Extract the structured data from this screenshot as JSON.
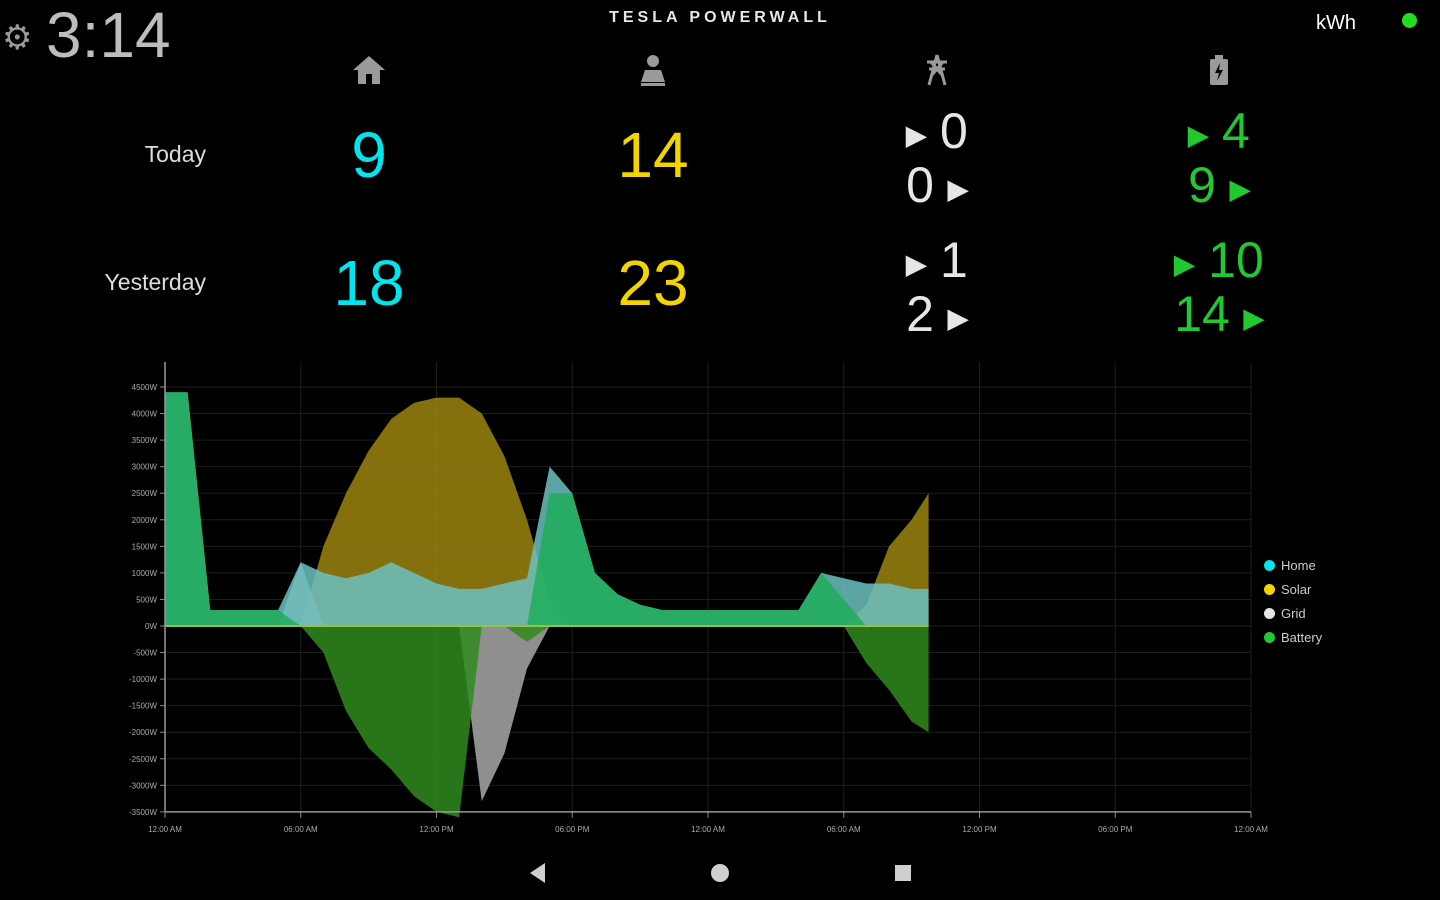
{
  "header": {
    "time": "3:14",
    "brand": "TESLA  POWERWALL",
    "unit": "kWh",
    "status_color": "#22dd22"
  },
  "colors": {
    "home": "#00e5ee",
    "solar": "#f2d400",
    "grid": "#e6e6e6",
    "battery": "#22c832"
  },
  "columns": [
    {
      "icon": "house-icon"
    },
    {
      "icon": "solar-panel-icon"
    },
    {
      "icon": "grid-tower-icon"
    },
    {
      "icon": "battery-icon"
    }
  ],
  "rows": [
    {
      "label": "Today",
      "home": "9",
      "solar": "14",
      "grid_in": "0",
      "grid_out": "0",
      "battery_in": "4",
      "battery_out": "9"
    },
    {
      "label": "Yesterday",
      "home": "18",
      "solar": "23",
      "grid_in": "1",
      "grid_out": "2",
      "battery_in": "10",
      "battery_out": "14"
    }
  ],
  "chart_data": {
    "type": "area",
    "yunit": "W",
    "ylim": [
      -3500,
      4500
    ],
    "yticks": [
      "4500W",
      "4000W",
      "3500W",
      "3000W",
      "2500W",
      "2000W",
      "1500W",
      "1000W",
      "500W",
      "0W",
      "-500W",
      "-1000W",
      "-1500W",
      "-2000W",
      "-2500W",
      "-3000W",
      "-3500W"
    ],
    "xticks": [
      "12:00 AM",
      "06:00 AM",
      "12:00 PM",
      "06:00 PM",
      "12:00 AM",
      "06:00 AM",
      "12:00 PM",
      "06:00 PM",
      "12:00 AM"
    ],
    "grid": true,
    "legend_position": "right",
    "x": [
      "D1 00:00",
      "D1 01:00",
      "D1 02:00",
      "D1 03:00",
      "D1 04:00",
      "D1 05:00",
      "D1 06:00",
      "D1 07:00",
      "D1 08:00",
      "D1 09:00",
      "D1 10:00",
      "D1 11:00",
      "D1 12:00",
      "D1 13:00",
      "D1 14:00",
      "D1 15:00",
      "D1 16:00",
      "D1 17:00",
      "D1 18:00",
      "D1 19:00",
      "D1 20:00",
      "D1 21:00",
      "D1 22:00",
      "D1 23:00",
      "D2 00:00",
      "D2 01:00",
      "D2 02:00",
      "D2 03:00",
      "D2 04:00",
      "D2 05:00",
      "D2 06:00",
      "D2 07:00",
      "D2 08:00",
      "D2 09:00",
      "D2 09:45"
    ],
    "series": [
      {
        "name": "Solar",
        "color": "#9c8410",
        "values": [
          0,
          0,
          0,
          0,
          0,
          0,
          0,
          1500,
          2500,
          3300,
          3900,
          4200,
          4300,
          4300,
          4000,
          3200,
          2000,
          500,
          0,
          0,
          0,
          0,
          0,
          0,
          0,
          0,
          0,
          0,
          0,
          0,
          0,
          400,
          1500,
          2000,
          2500
        ]
      },
      {
        "name": "Grid",
        "color": "#a8a8a8",
        "values": [
          0,
          0,
          0,
          0,
          0,
          0,
          1200,
          0,
          0,
          0,
          0,
          0,
          0,
          0,
          -3300,
          -2400,
          -800,
          0,
          0,
          0,
          0,
          0,
          0,
          0,
          0,
          0,
          0,
          0,
          0,
          0,
          0,
          0,
          0,
          0,
          0
        ]
      },
      {
        "name": "Home",
        "color": "#6cc0c0",
        "values": [
          4400,
          4400,
          300,
          300,
          300,
          300,
          1200,
          1000,
          900,
          1000,
          1200,
          1000,
          800,
          700,
          700,
          800,
          900,
          3000,
          2500,
          1000,
          600,
          400,
          300,
          300,
          300,
          300,
          300,
          300,
          300,
          1000,
          900,
          800,
          800,
          700,
          700
        ]
      },
      {
        "name": "Battery",
        "color": "#1fae5a",
        "negColor": "#2f8a1e",
        "values": [
          4400,
          4400,
          300,
          300,
          300,
          300,
          0,
          -500,
          -1600,
          -2300,
          -2700,
          -3200,
          -3500,
          -3600,
          0,
          0,
          -300,
          2500,
          2500,
          1000,
          600,
          400,
          300,
          300,
          300,
          300,
          300,
          300,
          300,
          1000,
          500,
          -700,
          -1200,
          -1800,
          -2000
        ]
      }
    ],
    "legend": [
      "Home",
      "Solar",
      "Grid",
      "Battery"
    ]
  },
  "nav": {
    "back": "back-icon",
    "home": "home-icon",
    "recents": "recents-icon"
  }
}
